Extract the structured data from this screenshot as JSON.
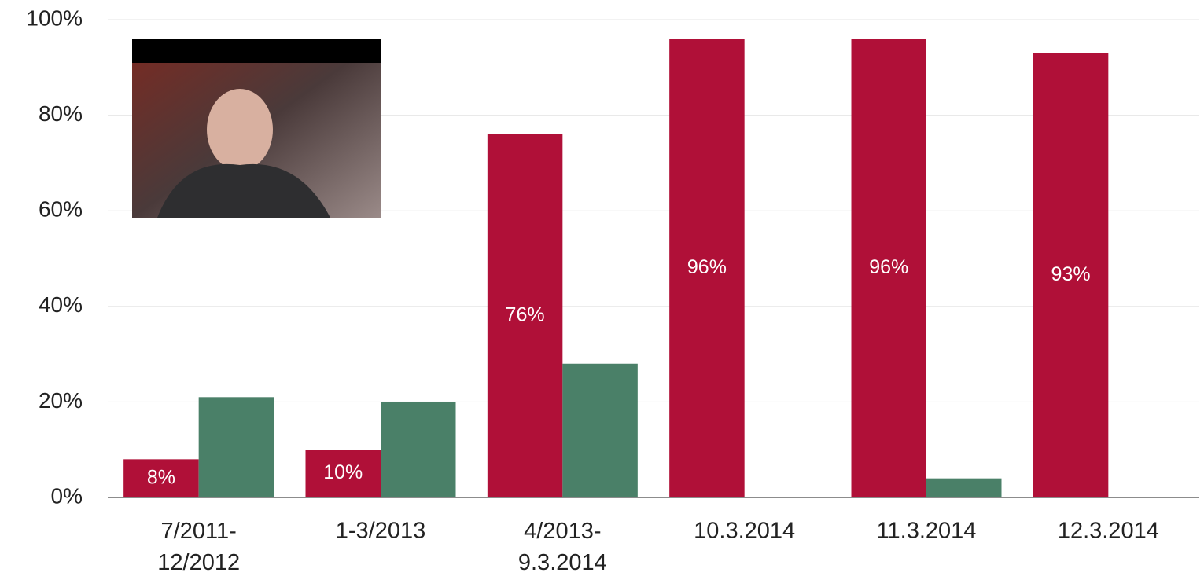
{
  "chart_data": {
    "type": "bar",
    "categories": [
      "7/2011-12/2012",
      "1-3/2013",
      "4/2013-9.3.2014",
      "10.3.2014",
      "11.3.2014",
      "12.3.2014"
    ],
    "series": [
      {
        "color": "#b01038",
        "values": [
          8,
          10,
          76,
          96,
          96,
          93
        ],
        "value_labels": [
          "8%",
          "10%",
          "76%",
          "96%",
          "96%",
          "93%"
        ]
      },
      {
        "color": "#4a8068",
        "values": [
          21,
          20,
          28,
          0,
          4,
          0
        ]
      }
    ],
    "ylim": [
      0,
      100
    ],
    "yticks": [
      {
        "value": 0,
        "label": "0%"
      },
      {
        "value": 20,
        "label": "20%"
      },
      {
        "value": 40,
        "label": "40%"
      },
      {
        "value": 60,
        "label": "60%"
      },
      {
        "value": 80,
        "label": "80%"
      },
      {
        "value": 100,
        "label": "100%"
      }
    ],
    "grid": true
  }
}
